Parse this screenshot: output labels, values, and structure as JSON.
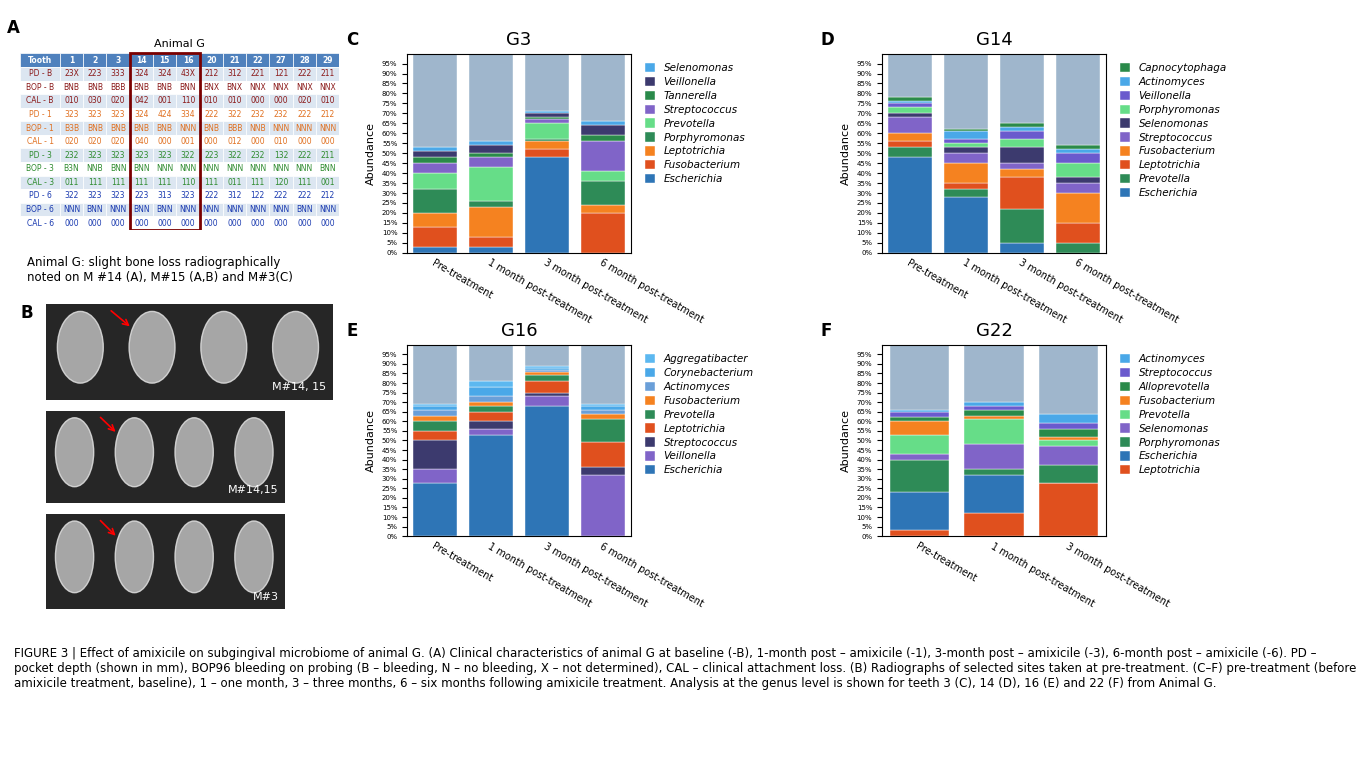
{
  "table": {
    "panel": "A",
    "title": "Animal G",
    "header": [
      "Tooth",
      "1",
      "2",
      "3",
      "14",
      "15",
      "16",
      "20",
      "21",
      "22",
      "27",
      "28",
      "29"
    ],
    "highlight": [
      "14",
      "15",
      "16"
    ],
    "rows": [
      [
        "PD - B",
        "23X",
        "223",
        "333",
        "324",
        "324",
        "43X",
        "212",
        "312",
        "221",
        "121",
        "222",
        "211"
      ],
      [
        "BOP - B",
        "BNB",
        "BNB",
        "BBB",
        "BNB",
        "BNB",
        "BNN",
        "BNX",
        "BNX",
        "NNX",
        "NNX",
        "NNX",
        "NNX"
      ],
      [
        "CAL - B",
        "010",
        "030",
        "020",
        "042",
        "001",
        "110",
        "010",
        "010",
        "000",
        "000",
        "020",
        "010"
      ],
      [
        "PD - 1",
        "323",
        "323",
        "323",
        "324",
        "424",
        "334",
        "222",
        "322",
        "232",
        "232",
        "222",
        "212"
      ],
      [
        "BOP - 1",
        "B3B",
        "BNB",
        "BNB",
        "BNB",
        "BNB",
        "NNN",
        "BNB",
        "BBB",
        "NNB",
        "NNN",
        "NNN",
        "NNN"
      ],
      [
        "CAL - 1",
        "020",
        "020",
        "020",
        "040",
        "000",
        "001",
        "000",
        "012",
        "000",
        "010",
        "000",
        "000"
      ],
      [
        "PD - 3",
        "232",
        "323",
        "323",
        "323",
        "323",
        "322",
        "223",
        "322",
        "232",
        "132",
        "222",
        "211"
      ],
      [
        "BOP - 3",
        "B3N",
        "NNB",
        "BNN",
        "BNN",
        "NNN",
        "NNN",
        "NNN",
        "NNN",
        "NNN",
        "NNN",
        "NNN",
        "BNN"
      ],
      [
        "CAL - 3",
        "011",
        "111",
        "111",
        "111",
        "111",
        "110",
        "111",
        "011",
        "111",
        "120",
        "111",
        "001"
      ],
      [
        "PD - 6",
        "322",
        "323",
        "323",
        "223",
        "313",
        "323",
        "222",
        "312",
        "122",
        "222",
        "222",
        "212"
      ],
      [
        "BOP - 6",
        "NNN",
        "BNN",
        "NNN",
        "BNN",
        "BNN",
        "NNN",
        "NNN",
        "NNN",
        "NNN",
        "NNN",
        "BNN",
        "NNN"
      ],
      [
        "CAL - 6",
        "000",
        "000",
        "000",
        "000",
        "000",
        "000",
        "000",
        "000",
        "000",
        "000",
        "000",
        "000"
      ]
    ],
    "colors": [
      "#8b1a1a",
      "#8b1a1a",
      "#8b1a1a",
      "#e07020",
      "#e07020",
      "#e07020",
      "#2e8b2e",
      "#2e8b2e",
      "#2e8b2e",
      "#1a3ab0",
      "#1a3ab0",
      "#1a3ab0"
    ]
  },
  "radiographs": {
    "panel": "B",
    "title": "Animal G: slight bone loss radiographically\nnoted on M #14 (A), M#15 (A,B) and M#3(C)",
    "images": [
      "M#14, 15",
      "M#14,15",
      "M#3"
    ]
  },
  "chart_data": [
    {
      "type": "bar",
      "stacked": true,
      "panel": "C",
      "title": "G3",
      "y_label": "Abundance",
      "legend": "upper left",
      "categories": [
        "Pre-treatment",
        "1 month post-treatment",
        "3 month post-treatment",
        "6 month post-treatment"
      ],
      "ylim": [
        0,
        100
      ],
      "yticks": [
        {
          "value": 0,
          "label": "0%"
        },
        {
          "value": 5,
          "label": "5%"
        },
        {
          "value": 10,
          "label": "10%"
        },
        {
          "value": 15,
          "label": "15%"
        },
        {
          "value": 20,
          "label": "20%"
        },
        {
          "value": 25,
          "label": "25%"
        },
        {
          "value": 30,
          "label": "30%"
        },
        {
          "value": 35,
          "label": "35%"
        },
        {
          "value": 40,
          "label": "40%"
        },
        {
          "value": 45,
          "label": "45%"
        },
        {
          "value": 50,
          "label": "50%"
        },
        {
          "value": 55,
          "label": "55%"
        },
        {
          "value": 60,
          "label": "60%"
        },
        {
          "value": 65,
          "label": "65%"
        },
        {
          "value": 70,
          "label": "70%"
        },
        {
          "value": 75,
          "label": "75%"
        },
        {
          "value": 80,
          "label": "80%"
        },
        {
          "value": 85,
          "label": "85%"
        },
        {
          "value": 90,
          "label": "90%"
        },
        {
          "value": 95,
          "label": "95%"
        }
      ],
      "series": [
        {
          "name": "Escherichia",
          "color": "#2e75b6",
          "values": [
            3,
            3,
            48,
            0
          ]
        },
        {
          "name": "Fusobacterium",
          "color": "#e0501e",
          "values": [
            10,
            5,
            4,
            20
          ]
        },
        {
          "name": "Leptotrichia",
          "color": "#f58220",
          "values": [
            7,
            15,
            4,
            4
          ]
        },
        {
          "name": "Porphyromonas",
          "color": "#2e8b57",
          "values": [
            12,
            3,
            1,
            12
          ]
        },
        {
          "name": "Prevotella",
          "color": "#66dd88",
          "values": [
            8,
            17,
            8,
            5
          ]
        },
        {
          "name": "Streptococcus",
          "color": "#8064c8",
          "values": [
            5,
            5,
            2,
            15
          ]
        },
        {
          "name": "Tannerella",
          "color": "#2a8a4a",
          "values": [
            3,
            2,
            1,
            3
          ]
        },
        {
          "name": "Veillonella",
          "color": "#3c3a6e",
          "values": [
            3,
            4,
            2,
            5
          ]
        },
        {
          "name": "Selenomonas",
          "color": "#4aa8e8",
          "values": [
            2,
            2,
            1,
            2
          ]
        },
        {
          "name": null,
          "color": "#9fb6cc",
          "values": [
            47,
            44,
            29,
            34
          ]
        }
      ]
    },
    {
      "type": "bar",
      "stacked": true,
      "panel": "D",
      "title": "G14",
      "y_label": "Abundance",
      "legend": "upper left",
      "categories": [
        "Pre-treatment",
        "1 month post-treatment",
        "3 month post-treatment",
        "6 month post-treatment"
      ],
      "ylim": [
        0,
        100
      ],
      "yticks": [
        {
          "value": 0,
          "label": "0%"
        },
        {
          "value": 5,
          "label": "5%"
        },
        {
          "value": 10,
          "label": "10%"
        },
        {
          "value": 15,
          "label": "15%"
        },
        {
          "value": 20,
          "label": "20%"
        },
        {
          "value": 25,
          "label": "25%"
        },
        {
          "value": 30,
          "label": "30%"
        },
        {
          "value": 35,
          "label": "35%"
        },
        {
          "value": 40,
          "label": "40%"
        },
        {
          "value": 45,
          "label": "45%"
        },
        {
          "value": 50,
          "label": "50%"
        },
        {
          "value": 55,
          "label": "55%"
        },
        {
          "value": 60,
          "label": "60%"
        },
        {
          "value": 65,
          "label": "65%"
        },
        {
          "value": 70,
          "label": "70%"
        },
        {
          "value": 75,
          "label": "75%"
        },
        {
          "value": 80,
          "label": "80%"
        },
        {
          "value": 85,
          "label": "85%"
        },
        {
          "value": 90,
          "label": "90%"
        },
        {
          "value": 95,
          "label": "95%"
        }
      ],
      "series": [
        {
          "name": "Escherichia",
          "color": "#2e75b6",
          "values": [
            48,
            28,
            5,
            0
          ]
        },
        {
          "name": "Prevotella",
          "color": "#2e8b57",
          "values": [
            5,
            4,
            17,
            5
          ]
        },
        {
          "name": "Leptotrichia",
          "color": "#e0501e",
          "values": [
            3,
            3,
            16,
            10
          ]
        },
        {
          "name": "Fusobacterium",
          "color": "#f58220",
          "values": [
            4,
            10,
            4,
            15
          ]
        },
        {
          "name": "Streptococcus",
          "color": "#8064c8",
          "values": [
            8,
            5,
            3,
            5
          ]
        },
        {
          "name": "Selenomonas",
          "color": "#3c3a6e",
          "values": [
            2,
            3,
            8,
            3
          ]
        },
        {
          "name": "Porphyromonas",
          "color": "#66dd88",
          "values": [
            3,
            2,
            4,
            7
          ]
        },
        {
          "name": "Veillonella",
          "color": "#6a5acd",
          "values": [
            2,
            2,
            4,
            5
          ]
        },
        {
          "name": "Actinomyces",
          "color": "#4aa8e8",
          "values": [
            1,
            4,
            2,
            2
          ]
        },
        {
          "name": "Capnocytophaga",
          "color": "#2a8a4a",
          "values": [
            2,
            1,
            2,
            2
          ]
        },
        {
          "name": null,
          "color": "#9fb6cc",
          "values": [
            22,
            38,
            35,
            46
          ]
        }
      ]
    },
    {
      "type": "bar",
      "stacked": true,
      "panel": "E",
      "title": "G16",
      "y_label": "Abundance",
      "legend": "upper left",
      "categories": [
        "Pre-treatment",
        "1 month post-treatment",
        "3 month post-treatment",
        "6 month post-treatment"
      ],
      "ylim": [
        0,
        100
      ],
      "yticks": [
        {
          "value": 0,
          "label": "0%"
        },
        {
          "value": 5,
          "label": "5%"
        },
        {
          "value": 10,
          "label": "10%"
        },
        {
          "value": 15,
          "label": "15%"
        },
        {
          "value": 20,
          "label": "20%"
        },
        {
          "value": 25,
          "label": "25%"
        },
        {
          "value": 30,
          "label": "30%"
        },
        {
          "value": 35,
          "label": "35%"
        },
        {
          "value": 40,
          "label": "40%"
        },
        {
          "value": 45,
          "label": "45%"
        },
        {
          "value": 50,
          "label": "50%"
        },
        {
          "value": 55,
          "label": "55%"
        },
        {
          "value": 60,
          "label": "60%"
        },
        {
          "value": 65,
          "label": "65%"
        },
        {
          "value": 70,
          "label": "70%"
        },
        {
          "value": 75,
          "label": "75%"
        },
        {
          "value": 80,
          "label": "80%"
        },
        {
          "value": 85,
          "label": "85%"
        },
        {
          "value": 90,
          "label": "90%"
        },
        {
          "value": 95,
          "label": "95%"
        }
      ],
      "series": [
        {
          "name": "Escherichia",
          "color": "#2e75b6",
          "values": [
            28,
            53,
            68,
            0
          ]
        },
        {
          "name": "Veillonella",
          "color": "#8064c8",
          "values": [
            7,
            3,
            5,
            32
          ]
        },
        {
          "name": "Streptococcus",
          "color": "#3c3a6e",
          "values": [
            15,
            4,
            2,
            4
          ]
        },
        {
          "name": "Leptotrichia",
          "color": "#e0501e",
          "values": [
            5,
            5,
            6,
            13
          ]
        },
        {
          "name": "Prevotella",
          "color": "#2e8b57",
          "values": [
            5,
            3,
            3,
            12
          ]
        },
        {
          "name": "Fusobacterium",
          "color": "#f58220",
          "values": [
            3,
            2,
            2,
            3
          ]
        },
        {
          "name": "Actinomyces",
          "color": "#6a9fd8",
          "values": [
            3,
            3,
            1,
            2
          ]
        },
        {
          "name": "Corynebacterium",
          "color": "#4aa8e8",
          "values": [
            2,
            5,
            1,
            2
          ]
        },
        {
          "name": "Aggregatibacter",
          "color": "#5cb8f0",
          "values": [
            1,
            3,
            1,
            1
          ]
        },
        {
          "name": null,
          "color": "#9fb6cc",
          "values": [
            31,
            19,
            11,
            31
          ]
        }
      ]
    },
    {
      "type": "bar",
      "stacked": true,
      "panel": "F",
      "title": "G22",
      "y_label": "Abundance",
      "legend": "upper left",
      "categories": [
        "Pre-treatment",
        "1 month post-treatment",
        "3 month post-treatment"
      ],
      "ylim": [
        0,
        100
      ],
      "yticks": [
        {
          "value": 0,
          "label": "0%"
        },
        {
          "value": 5,
          "label": "5%"
        },
        {
          "value": 10,
          "label": "10%"
        },
        {
          "value": 15,
          "label": "15%"
        },
        {
          "value": 20,
          "label": "20%"
        },
        {
          "value": 25,
          "label": "25%"
        },
        {
          "value": 30,
          "label": "30%"
        },
        {
          "value": 35,
          "label": "35%"
        },
        {
          "value": 40,
          "label": "40%"
        },
        {
          "value": 45,
          "label": "45%"
        },
        {
          "value": 50,
          "label": "50%"
        },
        {
          "value": 55,
          "label": "55%"
        },
        {
          "value": 60,
          "label": "60%"
        },
        {
          "value": 65,
          "label": "65%"
        },
        {
          "value": 70,
          "label": "70%"
        },
        {
          "value": 75,
          "label": "75%"
        },
        {
          "value": 80,
          "label": "80%"
        },
        {
          "value": 85,
          "label": "85%"
        },
        {
          "value": 90,
          "label": "90%"
        },
        {
          "value": 95,
          "label": "95%"
        }
      ],
      "series": [
        {
          "name": "Leptotrichia",
          "color": "#e0501e",
          "values": [
            3,
            12,
            28
          ]
        },
        {
          "name": "Escherichia",
          "color": "#2e75b6",
          "values": [
            20,
            20,
            0
          ]
        },
        {
          "name": "Porphyromonas",
          "color": "#2e8b57",
          "values": [
            17,
            3,
            9
          ]
        },
        {
          "name": "Selenomonas",
          "color": "#8064c8",
          "values": [
            3,
            13,
            10
          ]
        },
        {
          "name": "Prevotella",
          "color": "#66dd88",
          "values": [
            10,
            13,
            3
          ]
        },
        {
          "name": "Fusobacterium",
          "color": "#f58220",
          "values": [
            7,
            2,
            2
          ]
        },
        {
          "name": "Alloprevotella",
          "color": "#2a8a4a",
          "values": [
            2,
            3,
            4
          ]
        },
        {
          "name": "Streptococcus",
          "color": "#6a5acd",
          "values": [
            3,
            2,
            3
          ]
        },
        {
          "name": "Actinomyces",
          "color": "#4aa8e8",
          "values": [
            1,
            2,
            5
          ]
        },
        {
          "name": null,
          "color": "#9fb6cc",
          "values": [
            34,
            30,
            36
          ]
        }
      ]
    }
  ],
  "caption": "FIGURE 3 | Effect of amixicile on subgingival microbiome of animal G. (A) Clinical characteristics of animal G at baseline (-B), 1-month post – amixicile (-1), 3-month post – amixicile (-3), 6-month post – amixicile (-6). PD – pocket depth (shown in mm), BOP96 bleeding on probing (B – bleeding, N – no bleeding, X – not determined), CAL – clinical attachment loss. (B) Radiographs of selected sites taken at pre-treatment. (C–F) pre-treatment (before amixicile treatment, baseline), 1 – one month, 3 – three months, 6 – six months following amixicile treatment. Analysis at the genus level is shown for teeth 3 (C), 14 (D), 16 (E) and 22 (F) from Animal G."
}
